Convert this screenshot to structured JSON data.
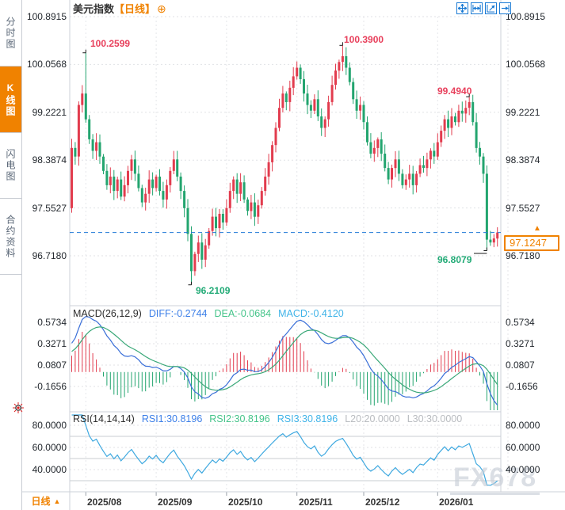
{
  "sidebar": {
    "items": [
      {
        "key": "time-chart",
        "label": "分时图",
        "active": false
      },
      {
        "key": "kline-chart",
        "label": "K线图",
        "active": true
      },
      {
        "key": "flash-chart",
        "label": "闪电图",
        "active": false
      },
      {
        "key": "contract-info",
        "label": "合约资料",
        "active": false
      }
    ]
  },
  "header": {
    "title": "美元指数",
    "timeframe": "【日线】",
    "add_icon": "⊕"
  },
  "toolbar": {
    "icons": [
      "pan",
      "fit-horizontal",
      "fit-vertical",
      "jump-latest"
    ]
  },
  "price_axis": {
    "left": [
      "100.8915",
      "100.0568",
      "99.2221",
      "98.3874",
      "97.5527",
      "96.7180"
    ],
    "right": [
      "100.8915",
      "100.0568",
      "99.2221",
      "98.3874",
      "97.5527",
      "96.7180"
    ],
    "current": "97.1247",
    "up_arrow": "▲"
  },
  "price_labels": {
    "high_aug": "100.2599",
    "high_nov": "100.3900",
    "high_jan": "99.4940",
    "low_sep": "96.2109",
    "low_jan": "96.8079"
  },
  "macd": {
    "title": "MACD(26,12,9)",
    "diff": "DIFF:-0.2744",
    "dea": "DEA:-0.0684",
    "macd": "MACD:-0.4120",
    "axis": [
      "0.5734",
      "0.3271",
      "0.0807",
      "-0.1656"
    ]
  },
  "rsi": {
    "title": "RSI(14,14,14)",
    "rsi1": "RSI1:30.8196",
    "rsi2": "RSI2:30.8196",
    "rsi3": "RSI3:30.8196",
    "l20": "L20:20.0000",
    "l30": "L30:30.0000",
    "axis": [
      "80.0000",
      "60.0000",
      "40.0000"
    ]
  },
  "footer": {
    "timeframe": "日线",
    "arrow": "▲"
  },
  "watermark": "FX678",
  "colors": {
    "up": "#e23c4e",
    "down": "#23a56f",
    "accent": "#f08200",
    "icon_blue": "#1a7ad4",
    "diff_line": "#3a6fd8",
    "dea_line": "#3aa878",
    "rsi_line": "#3fa9e0",
    "label_red": "#e8405c",
    "label_green": "#23ab77",
    "dashed_price_line": "#2079d8"
  },
  "chart_data": {
    "type": "candlestick",
    "title": "美元指数【日线】",
    "panels": [
      "price",
      "MACD(26,12,9)",
      "RSI(14,14,14)"
    ],
    "y_axis_levels": [
      100.8915,
      100.0568,
      99.2221,
      98.3874,
      97.5527,
      96.718
    ],
    "macd_axis_levels": [
      0.5734,
      0.3271,
      0.0807,
      -0.1656
    ],
    "rsi_axis_levels": [
      80.0,
      60.0,
      40.0
    ],
    "current_price": 97.1247,
    "key_points": {
      "aug_high": 100.2599,
      "sep_low": 96.2109,
      "nov_high": 100.39,
      "jan_high": 99.494,
      "jan_low": 96.8079
    },
    "indicators": {
      "macd": {
        "params": [
          26,
          12,
          9
        ],
        "diff": -0.2744,
        "dea": -0.0684,
        "macd": -0.412
      },
      "rsi": {
        "params": [
          14,
          14,
          14
        ],
        "rsi1": 30.8196,
        "rsi2": 30.8196,
        "rsi3": 30.8196,
        "l20": 20.0,
        "l30": 30.0
      }
    },
    "first_open": 97.55,
    "closes": [
      98.6,
      98.45,
      99.35,
      99.55,
      99.1,
      98.75,
      98.55,
      98.7,
      98.45,
      98.2,
      97.95,
      98.1,
      97.85,
      98.05,
      97.75,
      97.95,
      98.2,
      98.4,
      98.15,
      97.9,
      97.65,
      97.8,
      98.05,
      97.9,
      98.1,
      97.85,
      97.7,
      97.95,
      98.2,
      98.4,
      98.1,
      97.85,
      97.55,
      97.1,
      96.45,
      96.75,
      96.95,
      96.65,
      96.9,
      97.15,
      97.4,
      97.2,
      97.45,
      97.3,
      97.55,
      97.85,
      98.05,
      97.8,
      98.0,
      97.7,
      97.5,
      97.65,
      97.4,
      97.6,
      97.85,
      98.1,
      98.35,
      98.65,
      98.95,
      99.3,
      99.55,
      99.4,
      99.65,
      99.85,
      100.0,
      99.8,
      99.55,
      99.35,
      99.25,
      99.45,
      99.15,
      98.95,
      99.1,
      99.4,
      99.7,
      99.95,
      100.1,
      100.2,
      100.0,
      99.75,
      99.45,
      99.25,
      99.35,
      99.05,
      98.7,
      98.5,
      98.6,
      98.75,
      98.5,
      98.25,
      98.05,
      98.25,
      98.4,
      98.15,
      97.95,
      98.05,
      98.15,
      97.95,
      98.15,
      98.3,
      98.25,
      98.4,
      98.55,
      98.45,
      98.7,
      98.9,
      99.1,
      98.95,
      99.15,
      99.05,
      99.25,
      99.2,
      99.3,
      99.4,
      99.05,
      98.6,
      98.45,
      98.15,
      97.0,
      96.95,
      97.02,
      97.1247
    ],
    "marked": [
      {
        "i": 4,
        "high": 100.2599
      },
      {
        "i": 34,
        "low": 96.2109
      },
      {
        "i": 77,
        "high": 100.39
      },
      {
        "i": 113,
        "high": 99.494
      },
      {
        "i": 118,
        "low": 96.8079
      }
    ],
    "month_ticks": [
      {
        "label": "2025/08",
        "i": 4
      },
      {
        "label": "2025/09",
        "i": 24
      },
      {
        "label": "2025/10",
        "i": 44
      },
      {
        "label": "2025/11",
        "i": 64
      },
      {
        "label": "2025/12",
        "i": 83
      },
      {
        "label": "2026/01",
        "i": 104
      }
    ]
  }
}
